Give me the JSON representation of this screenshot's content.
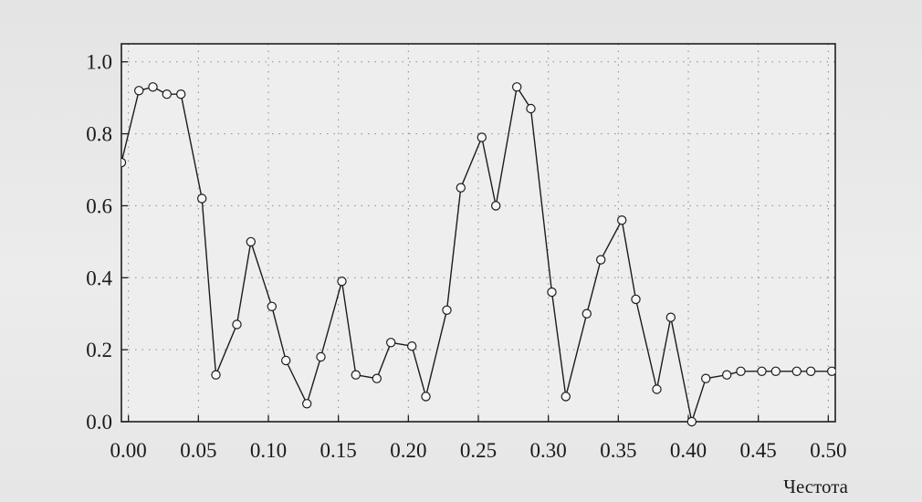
{
  "chart_data": {
    "type": "line",
    "title": "",
    "xlabel": "Честота",
    "ylabel": "",
    "xlim": [
      -0.005,
      0.505
    ],
    "ylim": [
      0.0,
      1.05
    ],
    "grid": "dotted",
    "markers": "open-circle",
    "x_ticks": [
      "0.00",
      "0.05",
      "0.10",
      "0.15",
      "0.20",
      "0.25",
      "0.30",
      "0.35",
      "0.40",
      "0.45",
      "0.50"
    ],
    "y_ticks": [
      "0.0",
      "0.2",
      "0.4",
      "0.6",
      "0.8",
      "1.0"
    ],
    "series": [
      {
        "x": [
          -0.005,
          0.0075,
          0.0175,
          0.0275,
          0.0375,
          0.0525,
          0.0625,
          0.0775,
          0.0875,
          0.1025,
          0.1125,
          0.1275,
          0.1375,
          0.1525,
          0.1625,
          0.1775,
          0.1875,
          0.2025,
          0.2125,
          0.2275,
          0.2375,
          0.2525,
          0.2625,
          0.2775,
          0.2875,
          0.3025,
          0.3125,
          0.3275,
          0.3375,
          0.3525,
          0.3625,
          0.3775,
          0.3875,
          0.4025,
          0.4125,
          0.4275,
          0.4375,
          0.4525,
          0.4625,
          0.4775,
          0.4875,
          0.5025
        ],
        "values": [
          0.72,
          0.92,
          0.93,
          0.91,
          0.91,
          0.62,
          0.13,
          0.27,
          0.5,
          0.32,
          0.17,
          0.05,
          0.18,
          0.39,
          0.13,
          0.12,
          0.22,
          0.21,
          0.07,
          0.31,
          0.65,
          0.79,
          0.6,
          0.93,
          0.87,
          0.36,
          0.07,
          0.3,
          0.45,
          0.56,
          0.34,
          0.09,
          0.29,
          0.0,
          0.12,
          0.13,
          0.14,
          0.14,
          0.14,
          0.14,
          0.14,
          0.14
        ]
      }
    ]
  }
}
